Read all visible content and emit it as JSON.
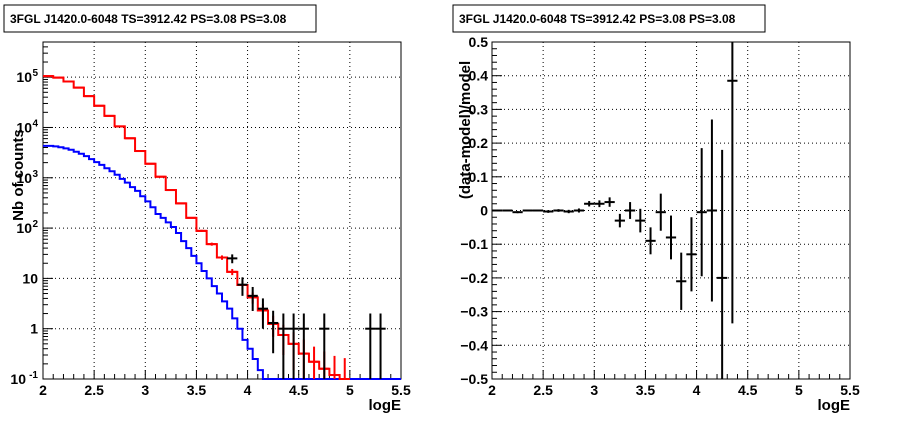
{
  "chart_data": [
    {
      "type": "scatter",
      "title": "3FGL J1420.0-6048 TS=3912.42 PS=3.08 PS=3.08",
      "xlabel": "logE",
      "ylabel": "Nb of counts",
      "xlim": [
        2,
        5.5
      ],
      "ylim": [
        0.1,
        500000
      ],
      "y_scale": "log",
      "grid": true,
      "x_ticks": [
        "2",
        "2.5",
        "3",
        "3.5",
        "4",
        "4.5",
        "5",
        "5.5"
      ],
      "y_ticks": [
        {
          "v": 0.1,
          "t": "10",
          "sup": "-1"
        },
        {
          "v": 1,
          "t": "1",
          "sup": ""
        },
        {
          "v": 10,
          "t": "10",
          "sup": ""
        },
        {
          "v": 100,
          "t": "10",
          "sup": "2"
        },
        {
          "v": 1000,
          "t": "10",
          "sup": "3"
        },
        {
          "v": 10000,
          "t": "10",
          "sup": "4"
        },
        {
          "v": 100000,
          "t": "10",
          "sup": "5"
        }
      ],
      "series": [
        {
          "kind": "step",
          "color": "#0000ff",
          "x_edges": [
            2.0,
            2.05,
            2.1,
            2.15,
            2.2,
            2.25,
            2.3,
            2.35,
            2.4,
            2.45,
            2.5,
            2.55,
            2.6,
            2.65,
            2.7,
            2.75,
            2.8,
            2.85,
            2.9,
            2.95,
            3.0,
            3.05,
            3.1,
            3.15,
            3.2,
            3.25,
            3.3,
            3.35,
            3.4,
            3.45,
            3.5,
            3.55,
            3.6,
            3.65,
            3.7,
            3.75,
            3.8,
            3.85,
            3.9,
            3.95,
            4.0,
            4.05,
            4.1,
            4.15,
            4.2,
            4.25,
            4.3,
            4.35,
            4.4,
            4.45,
            4.5,
            4.55,
            4.6,
            5.5
          ],
          "values": [
            4300,
            4300,
            4200,
            4050,
            3850,
            3600,
            3300,
            3000,
            2700,
            2350,
            2050,
            1800,
            1550,
            1350,
            1150,
            950,
            800,
            650,
            550,
            430,
            340,
            260,
            190,
            160,
            130,
            105,
            80,
            55,
            40,
            28,
            20,
            14,
            10,
            7,
            5,
            3.5,
            2.5,
            1.6,
            1.0,
            0.6,
            0.4,
            0.25,
            0.15,
            0.1,
            0.1,
            0.1,
            0.1,
            0.1,
            0.1,
            0.1,
            0.1,
            0.1,
            0.1
          ]
        },
        {
          "kind": "step",
          "color": "#ff0000",
          "x_edges": [
            2.0,
            2.1,
            2.2,
            2.3,
            2.4,
            2.5,
            2.6,
            2.7,
            2.8,
            2.9,
            3.0,
            3.1,
            3.2,
            3.3,
            3.4,
            3.5,
            3.6,
            3.7,
            3.8,
            3.9,
            4.0,
            4.1,
            4.2,
            4.3,
            4.4,
            4.5,
            4.6,
            4.7,
            4.8,
            4.9,
            5.0
          ],
          "values": [
            105000,
            98000,
            82000,
            62000,
            42000,
            27000,
            17000,
            10500,
            6100,
            3400,
            1900,
            1050,
            570,
            310,
            160,
            88,
            48,
            26,
            13.5,
            7.4,
            4.2,
            2.3,
            1.25,
            0.75,
            0.5,
            0.32,
            0.22,
            0.16,
            0.12,
            0.1
          ]
        },
        {
          "kind": "points",
          "color": "#ff0000",
          "note": "model points with error bars",
          "x": [
            2.05,
            2.15,
            2.25,
            2.35,
            2.45,
            2.55,
            2.65,
            2.75,
            2.85,
            2.95,
            3.05,
            3.15,
            3.25,
            3.35,
            3.45,
            3.55,
            3.65,
            3.75,
            3.85,
            3.95,
            4.05,
            4.15,
            4.25,
            4.35,
            4.45,
            4.55,
            4.65,
            4.75,
            4.85,
            4.95
          ],
          "y": [
            105000,
            98000,
            82000,
            62000,
            42000,
            27000,
            17000,
            10500,
            6100,
            3400,
            1900,
            1050,
            570,
            310,
            160,
            88,
            48,
            26,
            13.5,
            7.4,
            4.2,
            2.3,
            1.25,
            0.75,
            0.5,
            0.32,
            0.22,
            0.16,
            0.12,
            0.1
          ],
          "err": [
            0.02,
            0.02,
            0.02,
            0.02,
            0.02,
            0.02,
            0.02,
            0.02,
            0.02,
            0.02,
            0.02,
            0.02,
            0.02,
            0.02,
            0.02,
            0.05,
            0.07,
            0.1,
            0.14,
            0.2,
            0.25,
            0.35,
            0.45,
            0.6,
            0.7,
            0.9,
            1.0,
            1.2,
            1.4,
            1.6
          ]
        },
        {
          "kind": "points",
          "color": "#000000",
          "note": "data points with error bars",
          "x": [
            3.85,
            3.95,
            4.05,
            4.15,
            4.25,
            4.35,
            4.45,
            4.55,
            4.75,
            5.2,
            5.3
          ],
          "y": [
            25,
            7.5,
            4.5,
            2.5,
            1.3,
            1.0,
            1.0,
            1.0,
            1.0,
            1.0,
            1.0
          ],
          "err": [
            0.2,
            0.4,
            0.5,
            0.6,
            0.75,
            1.0,
            1.0,
            1.0,
            1.0,
            1.0,
            1.0
          ]
        }
      ]
    },
    {
      "type": "scatter",
      "title": "3FGL J1420.0-6048 TS=3912.42 PS=3.08 PS=3.08",
      "xlabel": "logE",
      "ylabel": "(data-model)/model",
      "xlim": [
        2,
        5.5
      ],
      "ylim": [
        -0.5,
        0.5
      ],
      "y_scale": "linear",
      "grid": true,
      "x_ticks": [
        "2",
        "2.5",
        "3",
        "3.5",
        "4",
        "4.5",
        "5",
        "5.5"
      ],
      "y_ticks": [
        "0.5",
        "0.4",
        "0.3",
        "0.2",
        "0.1",
        "0",
        "−0.1",
        "−0.2",
        "−0.3",
        "−0.4",
        "−0.5"
      ],
      "series": [
        {
          "kind": "points",
          "color": "#000000",
          "x": [
            2.05,
            2.15,
            2.25,
            2.35,
            2.45,
            2.55,
            2.65,
            2.75,
            2.85,
            2.95,
            3.05,
            3.15,
            3.25,
            3.35,
            3.45,
            3.55,
            3.65,
            3.75,
            3.85,
            3.95,
            4.05,
            4.15,
            4.25,
            4.35
          ],
          "y": [
            0.0,
            0.0,
            -0.005,
            0.0,
            0.0,
            -0.003,
            0.0,
            -0.003,
            0.0,
            0.02,
            0.02,
            0.025,
            -0.03,
            0.0,
            -0.03,
            -0.09,
            -0.005,
            -0.08,
            -0.21,
            -0.13,
            -0.005,
            0.0,
            -0.2,
            0.385
          ],
          "err": [
            0.003,
            0.003,
            0.003,
            0.003,
            0.003,
            0.004,
            0.004,
            0.005,
            0.006,
            0.008,
            0.01,
            0.014,
            0.02,
            0.025,
            0.035,
            0.04,
            0.055,
            0.065,
            0.085,
            0.11,
            0.19,
            0.27,
            0.38,
            0.72
          ]
        }
      ]
    }
  ]
}
